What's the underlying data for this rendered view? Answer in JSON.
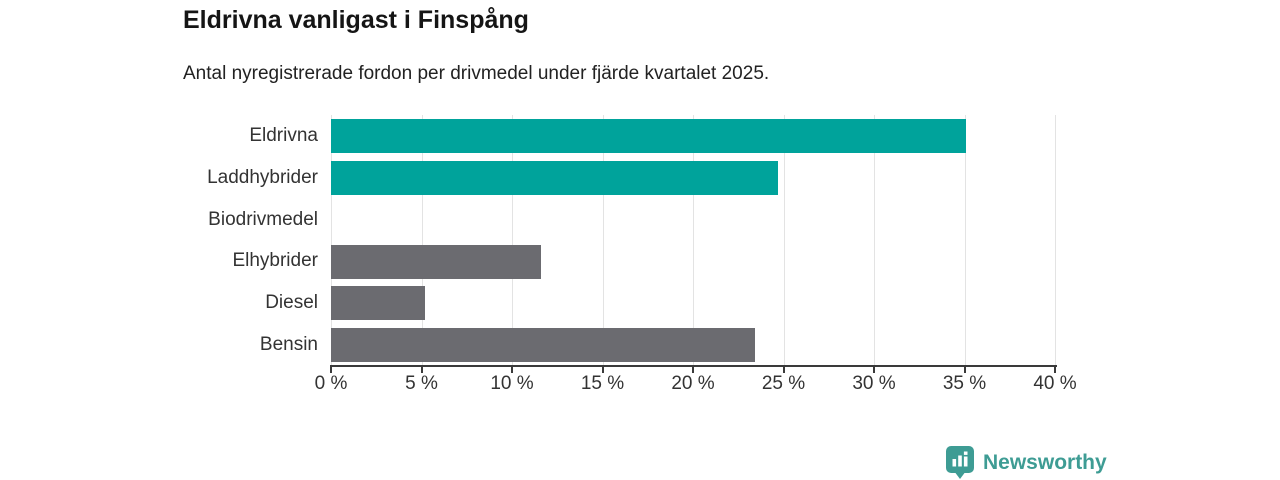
{
  "header": {
    "title": "Eldrivna vanligast i Finspång",
    "subtitle": "Antal nyregistrerade fordon per drivmedel under fjärde kvartalet 2025."
  },
  "chart_data": {
    "type": "bar",
    "orientation": "horizontal",
    "title": "Eldrivna vanligast i Finspång",
    "subtitle": "Antal nyregistrerade fordon per drivmedel under fjärde kvartalet 2025.",
    "categories": [
      "Eldrivna",
      "Laddhybrider",
      "Biodrivmedel",
      "Elhybrider",
      "Diesel",
      "Bensin"
    ],
    "values": [
      35.1,
      24.7,
      0,
      11.6,
      5.2,
      23.4
    ],
    "unit": "%",
    "bar_colors": [
      "#00a39b",
      "#00a39b",
      "#6b6b70",
      "#6b6b70",
      "#6b6b70",
      "#6b6b70"
    ],
    "highlight_color": "#00a39b",
    "base_color": "#6b6b70",
    "xlim": [
      0,
      40
    ],
    "x_tick_step": 5,
    "x_tick_labels": [
      "0 %",
      "5 %",
      "10 %",
      "15 %",
      "20 %",
      "25 %",
      "30 %",
      "35 %",
      "40 %"
    ],
    "grid": "vertical",
    "gridline_color": "#e3e3e3",
    "legend": false
  },
  "branding": {
    "logo_text": "Newsworthy",
    "logo_color": "#3e9c94"
  }
}
